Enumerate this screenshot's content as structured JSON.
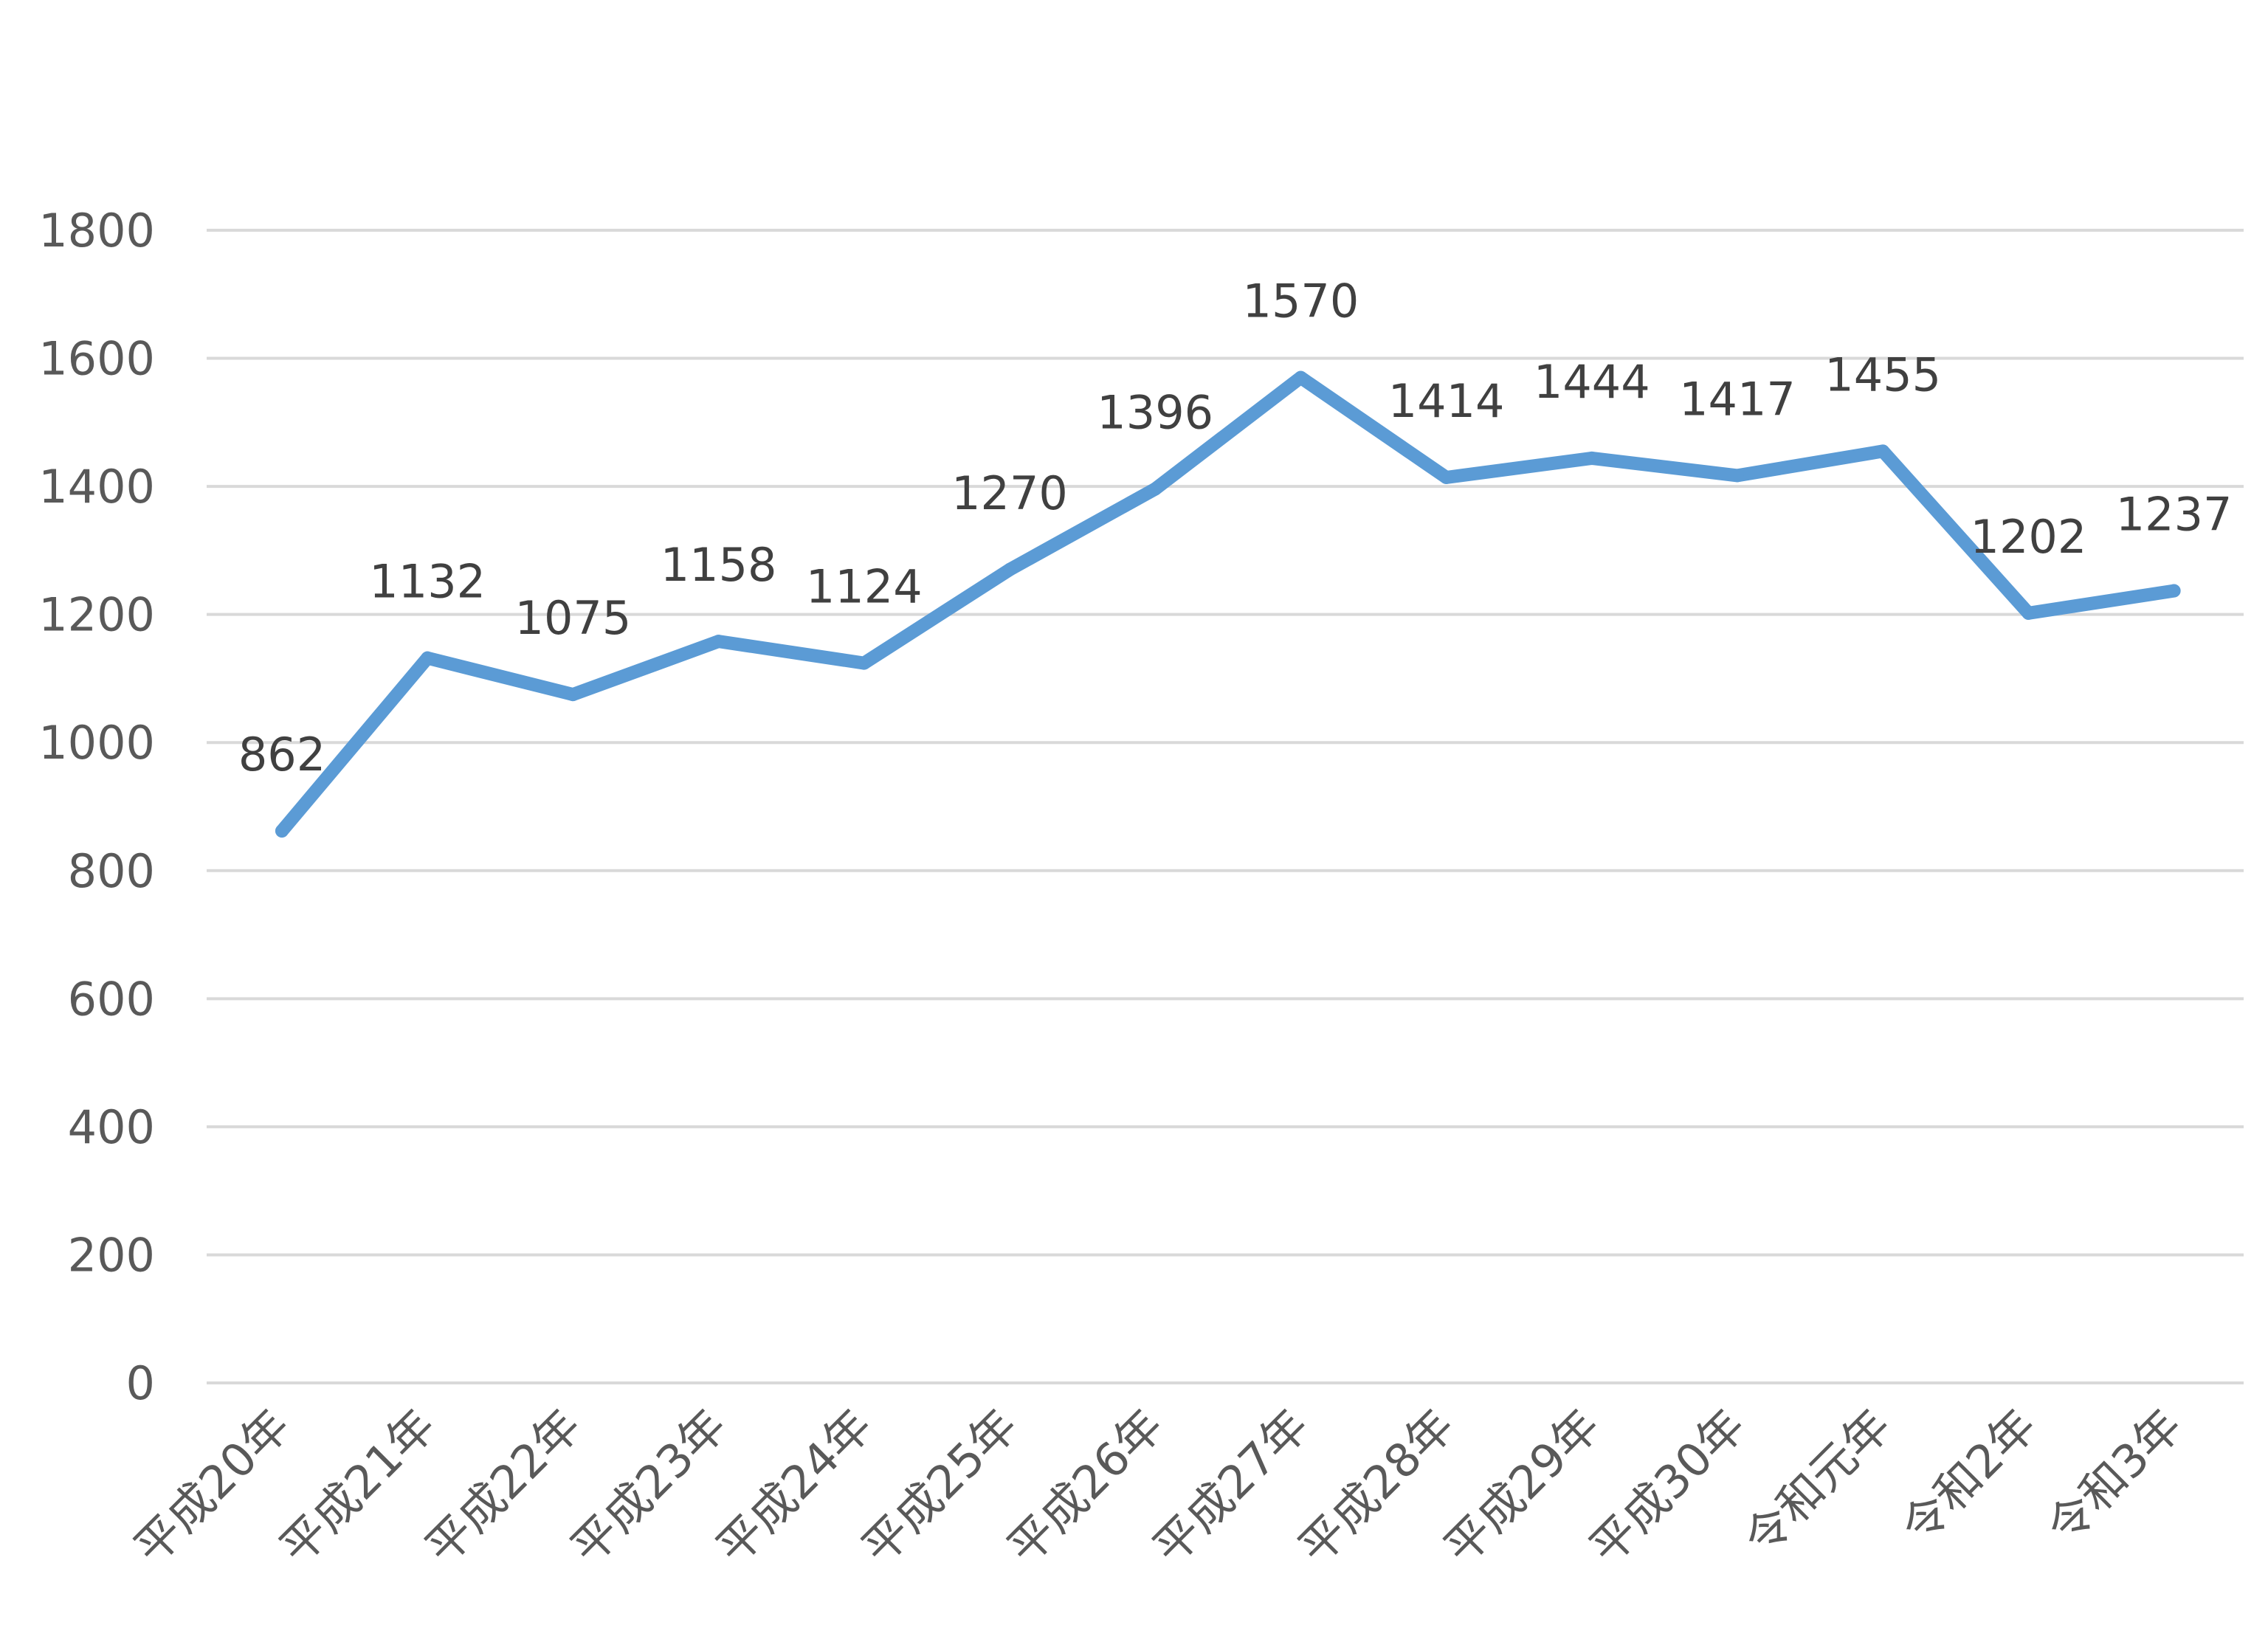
{
  "chart_data": {
    "type": "line",
    "title": "",
    "xlabel": "",
    "ylabel": "",
    "categories": [
      "平成20年",
      "平成21年",
      "平成22年",
      "平成23年",
      "平成24年",
      "平成25年",
      "平成26年",
      "平成27年",
      "平成28年",
      "平成29年",
      "平成30年",
      "令和元年",
      "令和2年",
      "令和3年"
    ],
    "series": [
      {
        "name": "",
        "values": [
          862,
          1132,
          1075,
          1158,
          1124,
          1270,
          1396,
          1570,
          1414,
          1444,
          1417,
          1455,
          1202,
          1237
        ],
        "color": "#5b9bd5"
      }
    ],
    "ylim": [
      0,
      1800
    ],
    "yticks": [
      0,
      200,
      400,
      600,
      800,
      1000,
      1200,
      1400,
      1600,
      1800
    ],
    "grid": true,
    "legend": "none",
    "data_labels": true
  }
}
